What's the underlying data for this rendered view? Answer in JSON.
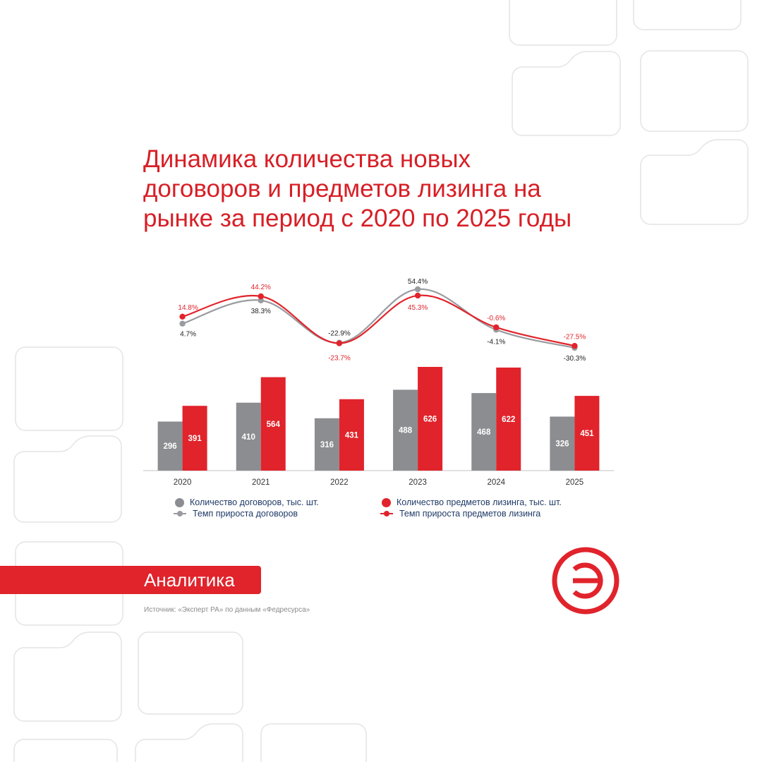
{
  "title_lines": [
    "Динамика количества новых",
    "договоров и предметов лизинга на",
    "рынке за период с 2020 по 2025 годы"
  ],
  "colors": {
    "accent": "#e1232b",
    "gray": "#8c8d91",
    "gray_line": "#9a9ba0",
    "dark_text": "#1f3a66"
  },
  "chart_data": {
    "type": "bar",
    "categories": [
      "2020",
      "2021",
      "2022",
      "2023",
      "2024",
      "2025"
    ],
    "series": [
      {
        "name": "Количество договоров, тыс. шт.",
        "values": [
          296,
          410,
          316,
          488,
          468,
          326
        ],
        "color": "#8c8d91"
      },
      {
        "name": "Количество предметов лизинга, тыс. шт.",
        "values": [
          391,
          564,
          431,
          626,
          622,
          451
        ],
        "color": "#e1232b"
      }
    ],
    "growth_series": [
      {
        "name": "Темп прироста договоров",
        "values": [
          4.7,
          38.3,
          -22.9,
          54.4,
          -4.1,
          -30.3
        ],
        "labels": [
          "4.7%",
          "38.3%",
          "-22.9%",
          "54.4%",
          "-4.1%",
          "-30.3%"
        ],
        "color": "#9a9ba0"
      },
      {
        "name": "Темп прироста предметов лизинга",
        "values": [
          14.8,
          44.2,
          -23.7,
          45.3,
          -0.6,
          -27.5
        ],
        "labels": [
          "14.8%",
          "44.2%",
          "-23.7%",
          "45.3%",
          "-0.6%",
          "-27.5%"
        ],
        "color": "#e1232b"
      }
    ],
    "ylim": [
      0,
      700
    ],
    "growth_ylim": [
      -40,
      70
    ]
  },
  "tag_label": "Аналитика",
  "source": "Источник: «Эксперт РА» по данным «Федресурса»",
  "logo_icon": "expert-ra-logo-icon",
  "logo_glyph": "Э"
}
